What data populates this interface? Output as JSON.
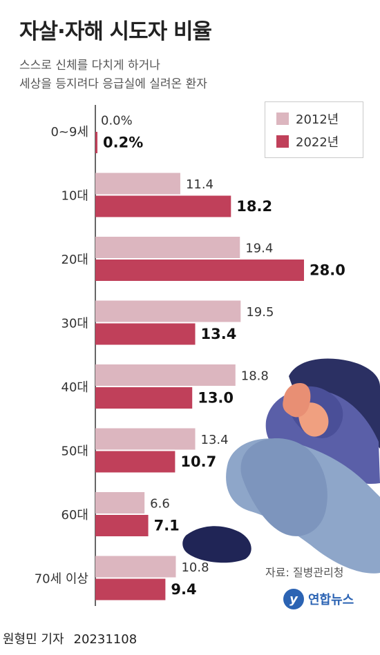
{
  "title": "자살·자해 시도자 비율",
  "subtitle_lines": [
    "스스로 신체를 다치게 하거나",
    "세상을 등지려다 응급실에 실려온 환자"
  ],
  "legend": [
    {
      "label": "2012년",
      "color": "#dcb6bf"
    },
    {
      "label": "2022년",
      "color": "#c0405a"
    }
  ],
  "source": "자료: 질병관리청",
  "logo_text": "연합뉴스",
  "byline": {
    "author": "원형민 기자",
    "date": "20231108"
  },
  "chart_data": {
    "type": "bar",
    "orientation": "horizontal",
    "categories": [
      "0~9세",
      "10대",
      "20대",
      "30대",
      "40대",
      "50대",
      "60대",
      "70세 이상"
    ],
    "series": [
      {
        "name": "2012년",
        "color": "#dcb6bf",
        "values": [
          0.0,
          11.4,
          19.4,
          19.5,
          18.8,
          13.4,
          6.6,
          10.8
        ],
        "labels": [
          "0.0%",
          "11.4",
          "19.4",
          "19.5",
          "18.8",
          "13.4",
          "6.6",
          "10.8"
        ]
      },
      {
        "name": "2022년",
        "color": "#c0405a",
        "values": [
          0.2,
          18.2,
          28.0,
          13.4,
          13.0,
          10.7,
          7.1,
          9.4
        ],
        "labels": [
          "0.2%",
          "18.2",
          "28.0",
          "13.4",
          "13.0",
          "10.7",
          "7.1",
          "9.4"
        ]
      }
    ],
    "xlim": [
      0,
      28
    ],
    "grid": false,
    "legend_position": "top-right"
  }
}
